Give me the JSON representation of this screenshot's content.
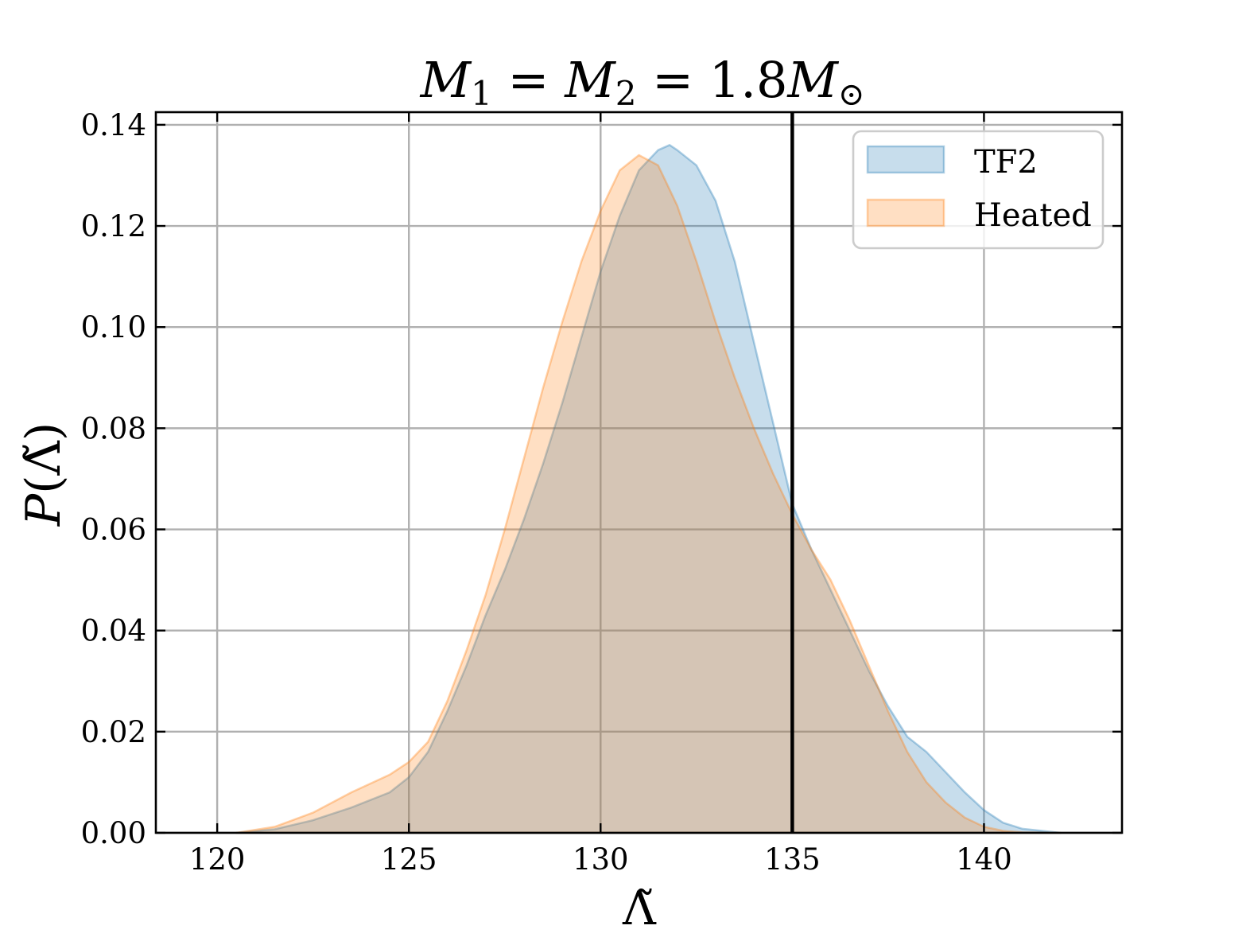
{
  "chart_data": {
    "type": "area",
    "title": {
      "base": "M",
      "sub1": "1",
      "eq1": " = ",
      "sub2": "2",
      "eq2": " = 1.8",
      "sub3": "⊙"
    },
    "xlabel": "Λ̃",
    "ylabel": {
      "func": "P",
      "open": "(",
      "var": "Λ̃",
      "close": ")"
    },
    "xlim": [
      118.4,
      143.6
    ],
    "ylim": [
      0.0,
      0.1425
    ],
    "xticks": [
      120,
      125,
      130,
      135,
      140
    ],
    "xtick_labels": [
      "120",
      "125",
      "130",
      "135",
      "140"
    ],
    "yticks": [
      0.0,
      0.02,
      0.04,
      0.06,
      0.08,
      0.1,
      0.12,
      0.14
    ],
    "ytick_labels": [
      "0.00",
      "0.02",
      "0.04",
      "0.06",
      "0.08",
      "0.10",
      "0.12",
      "0.14"
    ],
    "grid": true,
    "legend_position": "top-right",
    "vertical_line": {
      "x": 135.0,
      "color": "#000000"
    },
    "series": [
      {
        "name": "TF2",
        "color": "#1f77b4",
        "fill_opacity": 0.25,
        "x": [
          120.5,
          121.5,
          122.5,
          123.5,
          124.5,
          125.0,
          125.5,
          126.0,
          126.5,
          127.0,
          127.5,
          128.0,
          128.5,
          129.0,
          129.5,
          130.0,
          130.5,
          131.0,
          131.5,
          131.8,
          132.0,
          132.5,
          133.0,
          133.5,
          134.0,
          134.5,
          135.0,
          135.5,
          136.0,
          136.5,
          137.0,
          137.5,
          138.0,
          138.5,
          139.0,
          139.5,
          140.0,
          140.5,
          141.0,
          142.0
        ],
        "y": [
          0.0,
          0.0007,
          0.0025,
          0.005,
          0.008,
          0.011,
          0.016,
          0.024,
          0.033,
          0.043,
          0.052,
          0.062,
          0.073,
          0.085,
          0.098,
          0.111,
          0.122,
          0.131,
          0.135,
          0.136,
          0.135,
          0.132,
          0.125,
          0.113,
          0.097,
          0.081,
          0.065,
          0.056,
          0.048,
          0.04,
          0.032,
          0.025,
          0.019,
          0.016,
          0.012,
          0.008,
          0.0045,
          0.002,
          0.0008,
          0.0
        ]
      },
      {
        "name": "Heated",
        "color": "#ff7f0e",
        "fill_opacity": 0.25,
        "x": [
          120.5,
          121.5,
          122.5,
          123.5,
          124.5,
          125.0,
          125.5,
          126.0,
          126.5,
          127.0,
          127.5,
          128.0,
          128.5,
          129.0,
          129.5,
          130.0,
          130.5,
          131.0,
          131.5,
          132.0,
          132.5,
          133.0,
          133.5,
          134.0,
          134.5,
          135.0,
          135.5,
          136.0,
          136.5,
          137.0,
          137.5,
          138.0,
          138.5,
          139.0,
          139.5,
          140.0,
          140.5,
          141.0,
          142.0
        ],
        "y": [
          0.0,
          0.0012,
          0.004,
          0.008,
          0.0115,
          0.014,
          0.018,
          0.026,
          0.036,
          0.047,
          0.06,
          0.074,
          0.088,
          0.101,
          0.113,
          0.123,
          0.131,
          0.134,
          0.132,
          0.124,
          0.113,
          0.101,
          0.09,
          0.08,
          0.071,
          0.063,
          0.056,
          0.05,
          0.042,
          0.033,
          0.024,
          0.016,
          0.01,
          0.006,
          0.003,
          0.0012,
          0.0004,
          0.0001,
          0.0
        ]
      }
    ]
  }
}
